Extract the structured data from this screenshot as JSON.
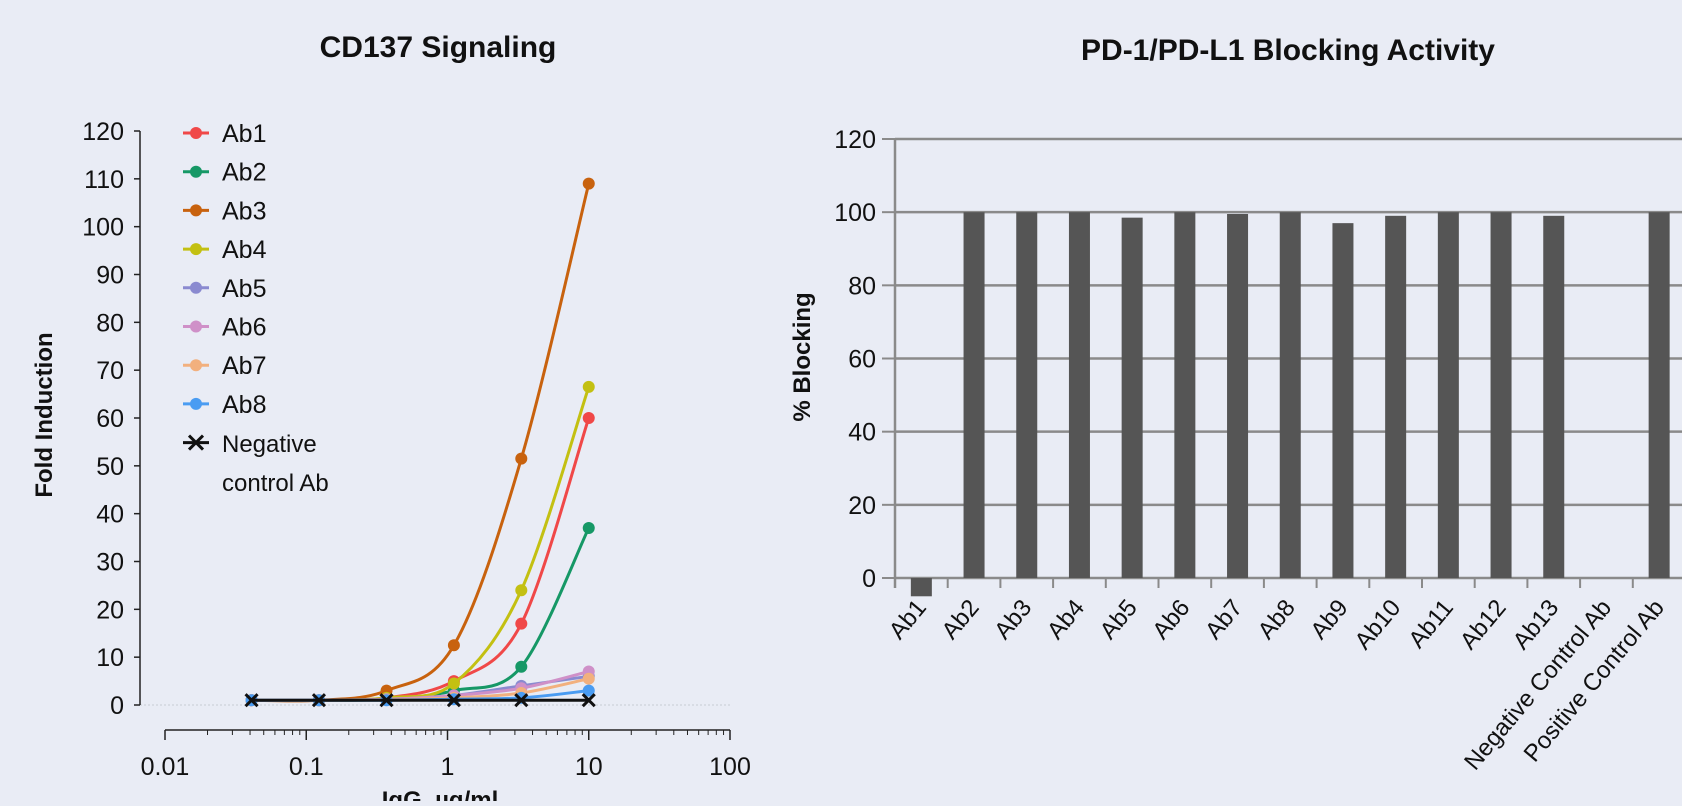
{
  "chart_data": [
    {
      "type": "scatter",
      "title": "CD137 Signaling",
      "xlabel": "IgG, µg/ml",
      "ylabel": "Fold Induction",
      "xscale": "log",
      "xlim": [
        0.01,
        100
      ],
      "ylim": [
        0,
        120
      ],
      "xticks": [
        "0.01",
        "0.1",
        "1",
        "10",
        "100"
      ],
      "yticks": [
        0,
        10,
        20,
        30,
        40,
        50,
        60,
        70,
        80,
        90,
        100,
        110,
        120
      ],
      "legend_position": "top-left",
      "legend_note": "Negative control Ab",
      "x": [
        0.041,
        0.123,
        0.37,
        1.11,
        3.33,
        10
      ],
      "series": [
        {
          "name": "Ab1",
          "color": "#f04848",
          "marker": "circle",
          "values": [
            1,
            1,
            1.5,
            5,
            17,
            60
          ]
        },
        {
          "name": "Ab2",
          "color": "#169866",
          "marker": "circle",
          "values": [
            1,
            1,
            1.2,
            3,
            8,
            37
          ]
        },
        {
          "name": "Ab3",
          "color": "#c8620e",
          "marker": "circle",
          "values": [
            1,
            1,
            3,
            12.5,
            51.5,
            109
          ]
        },
        {
          "name": "Ab4",
          "color": "#c3c012",
          "marker": "circle",
          "values": [
            1,
            1,
            1.5,
            4.5,
            24,
            66.5
          ]
        },
        {
          "name": "Ab5",
          "color": "#8a8ad0",
          "marker": "circle",
          "values": [
            1,
            1,
            1.2,
            2,
            4,
            6
          ]
        },
        {
          "name": "Ab6",
          "color": "#cf90c8",
          "marker": "circle",
          "values": [
            1,
            1,
            1.2,
            2,
            3.5,
            7
          ]
        },
        {
          "name": "Ab7",
          "color": "#f2b07e",
          "marker": "circle",
          "values": [
            1,
            1,
            1.1,
            1.5,
            2.5,
            5.5
          ]
        },
        {
          "name": "Ab8",
          "color": "#4a9cf2",
          "marker": "circle",
          "values": [
            1,
            1,
            1,
            1.2,
            1.5,
            3
          ]
        },
        {
          "name": "",
          "color": "#111111",
          "marker": "x",
          "values": [
            1,
            1,
            1,
            1,
            1,
            1
          ]
        }
      ]
    },
    {
      "type": "bar",
      "title": "PD-1/PD-L1 Blocking Activity",
      "xlabel": "",
      "ylabel": "% Blocking",
      "ylim": [
        0,
        120
      ],
      "yticks": [
        0,
        20,
        40,
        60,
        80,
        100,
        120
      ],
      "grid": true,
      "bar_color": "#555555",
      "categories": [
        "Ab1",
        "Ab2",
        "Ab3",
        "Ab4",
        "Ab5",
        "Ab6",
        "Ab7",
        "Ab8",
        "Ab9",
        "Ab10",
        "Ab11",
        "Ab12",
        "Ab13",
        "Negative Control Ab",
        "Positive Control Ab"
      ],
      "values": [
        -5,
        100,
        100,
        100,
        98.5,
        100,
        99.5,
        100,
        97,
        99,
        100,
        100,
        99,
        0,
        100
      ]
    }
  ]
}
